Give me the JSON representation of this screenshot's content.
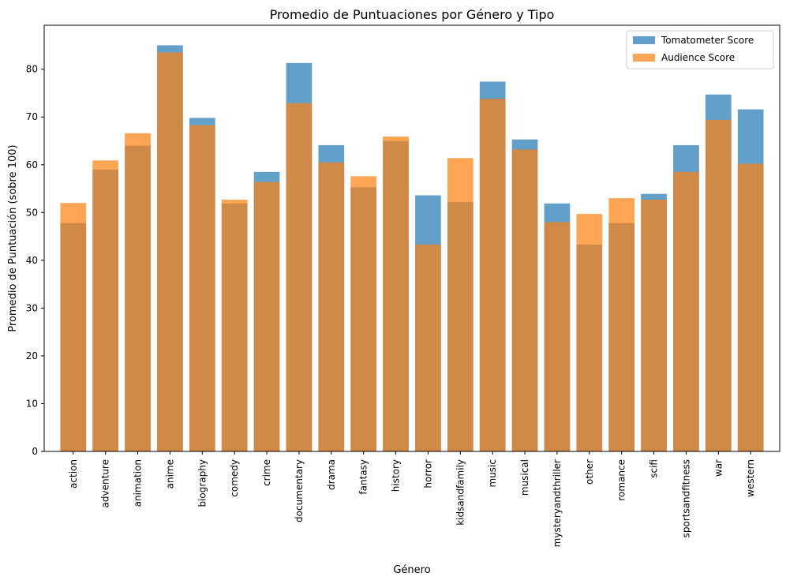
{
  "chart_data": {
    "type": "bar",
    "title": "Promedio de Puntuaciones por Género y Tipo",
    "xlabel": "Género",
    "ylabel": "Promedio de Puntuación (sobre 100)",
    "ylim": [
      0,
      89.2
    ],
    "yticks": [
      0,
      10,
      20,
      30,
      40,
      50,
      60,
      70,
      80
    ],
    "grid": false,
    "legend_position": "top-right",
    "categories": [
      "action",
      "adventure",
      "animation",
      "anime",
      "biography",
      "comedy",
      "crime",
      "documentary",
      "drama",
      "fantasy",
      "history",
      "horror",
      "kidsandfamily",
      "music",
      "musical",
      "mysteryandthriller",
      "other",
      "romance",
      "scifi",
      "sportsandfitness",
      "war",
      "western"
    ],
    "series": [
      {
        "name": "Tomatometer Score",
        "color": "#1f77b4",
        "opacity": 0.7,
        "values": [
          47.8,
          59.0,
          64.0,
          85.0,
          69.8,
          51.9,
          58.5,
          81.3,
          64.1,
          55.3,
          65.0,
          53.6,
          52.2,
          77.4,
          65.3,
          51.9,
          43.3,
          47.8,
          53.9,
          64.1,
          74.7,
          71.6
        ]
      },
      {
        "name": "Audience Score",
        "color": "#ff7f0e",
        "opacity": 0.7,
        "values": [
          52.0,
          60.9,
          66.6,
          83.5,
          68.3,
          52.7,
          56.4,
          72.9,
          60.5,
          57.6,
          65.9,
          43.3,
          61.4,
          73.8,
          63.2,
          48.0,
          49.7,
          53.0,
          52.7,
          58.5,
          69.4,
          60.2
        ]
      }
    ]
  }
}
